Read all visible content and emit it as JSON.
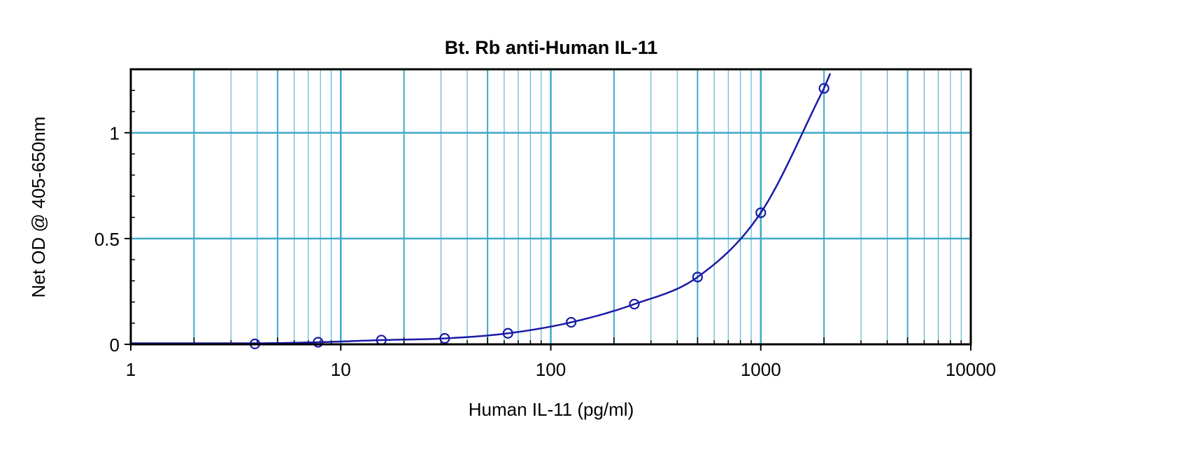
{
  "chart_data": {
    "type": "scatter",
    "title": "Bt. Rb anti-Human IL-11",
    "xlabel": "Human IL-11 (pg/ml)",
    "ylabel": "Net OD @ 405-650nm",
    "x_scale": "log",
    "xlim": [
      1,
      10000
    ],
    "ylim": [
      0,
      1.3
    ],
    "x_tick_labels": [
      "1",
      "10",
      "100",
      "1000",
      "10000"
    ],
    "x_tick_values": [
      1,
      10,
      100,
      1000,
      10000
    ],
    "y_tick_labels": [
      "0",
      "0.5",
      "1"
    ],
    "y_tick_values": [
      0,
      0.5,
      1
    ],
    "grid": true,
    "colors": {
      "series": "#1a1aa6",
      "grid": "#3fa9c9"
    },
    "series": [
      {
        "x": [
          3.9,
          7.8,
          15.6,
          31.25,
          62.5,
          125,
          250,
          500,
          1000,
          2000
        ],
        "y": [
          0.002,
          0.01,
          0.02,
          0.028,
          0.052,
          0.104,
          0.19,
          0.318,
          0.622,
          1.21
        ]
      }
    ]
  }
}
